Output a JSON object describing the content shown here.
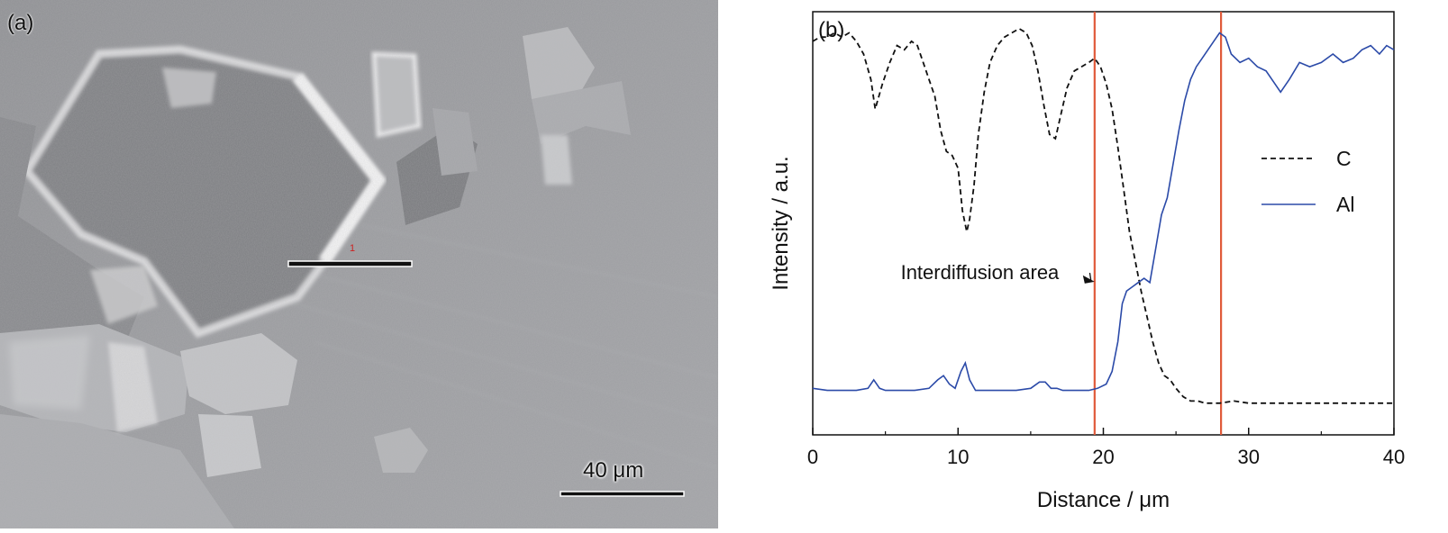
{
  "panel_a": {
    "label": "(a)",
    "scale_bar_label": "40 μm",
    "marker_label": "1"
  },
  "chart_data": {
    "type": "line",
    "panel_label": "(b)",
    "xlabel": "Distance / μm",
    "ylabel": "Intensity / a.u.",
    "xlim": [
      0,
      40
    ],
    "ylim": [
      0,
      100
    ],
    "xticks": [
      0,
      10,
      20,
      30,
      40
    ],
    "grid": false,
    "legend_position": "right",
    "vertical_lines": [
      19.4,
      28.1
    ],
    "vertical_line_color": "#e05a3a",
    "annotation": {
      "text": "Interdiffusion area",
      "x": 11.5,
      "y": 38.5,
      "arrow_to": [
        19.4,
        36.2
      ]
    },
    "series": [
      {
        "name": "C",
        "style": "dashed",
        "color": "#111111",
        "x": [
          0,
          0.5,
          1,
          1.5,
          2,
          2.5,
          3,
          3.5,
          4,
          4.3,
          4.8,
          5.3,
          5.8,
          6.3,
          6.8,
          7.2,
          7.6,
          8.0,
          8.4,
          8.8,
          9.2,
          9.6,
          10.0,
          10.3,
          10.6,
          10.8,
          11.1,
          11.4,
          11.8,
          12.2,
          12.7,
          13.2,
          13.7,
          14.2,
          14.7,
          15.1,
          15.5,
          15.9,
          16.3,
          16.7,
          17.1,
          17.5,
          18.0,
          18.5,
          19.0,
          19.4,
          19.8,
          20.2,
          20.6,
          21.0,
          21.4,
          21.8,
          22.2,
          22.6,
          23.0,
          23.4,
          23.8,
          24.2,
          24.6,
          25.0,
          25.5,
          26.0,
          26.5,
          27.0,
          27.5,
          28.0,
          29,
          30,
          31,
          32,
          33,
          34,
          35,
          36,
          37,
          38,
          39,
          40
        ],
        "y": [
          93,
          94,
          94,
          95,
          94,
          95,
          93,
          90,
          84,
          77,
          83,
          88,
          92,
          91,
          93,
          92,
          88,
          84,
          80,
          72,
          67,
          66,
          63,
          53,
          48,
          51,
          59,
          71,
          81,
          88,
          92,
          94,
          95,
          96,
          95,
          92,
          86,
          78,
          71,
          70,
          76,
          82,
          86,
          87,
          88,
          89,
          87,
          83,
          77,
          68,
          58,
          48,
          41,
          34,
          28,
          22,
          17,
          14,
          13,
          11,
          9,
          8,
          8,
          7.5,
          7.5,
          7.5,
          8,
          7.5,
          7.5,
          7.5,
          7.5,
          7.5,
          7.5,
          7.5,
          7.5,
          7.5,
          7.5,
          7.5
        ]
      },
      {
        "name": "Al",
        "style": "solid",
        "color": "#2b4aa8",
        "x": [
          0,
          1,
          2,
          3,
          3.8,
          4.2,
          4.6,
          5.0,
          6,
          7,
          8,
          8.6,
          9.0,
          9.4,
          9.8,
          10.2,
          10.5,
          10.8,
          11.2,
          12,
          13,
          14,
          15,
          15.6,
          16.0,
          16.4,
          16.8,
          17.2,
          18,
          19,
          19.6,
          20.2,
          20.6,
          21.0,
          21.3,
          21.6,
          22.0,
          22.4,
          22.8,
          23.2,
          23.6,
          24.0,
          24.4,
          24.8,
          25.2,
          25.6,
          26.0,
          26.4,
          26.8,
          27.2,
          27.6,
          28.0,
          28.4,
          28.8,
          29.4,
          30.0,
          30.6,
          31.2,
          31.8,
          32.2,
          32.8,
          33.5,
          34.2,
          35.0,
          35.8,
          36.5,
          37.2,
          37.8,
          38.4,
          39.0,
          39.5,
          40
        ],
        "y": [
          11,
          10.5,
          10.5,
          10.5,
          11,
          13,
          11,
          10.5,
          10.5,
          10.5,
          11,
          13,
          14,
          12,
          11,
          15,
          17,
          13,
          10.5,
          10.5,
          10.5,
          10.5,
          11,
          12.5,
          12.5,
          11,
          11,
          10.5,
          10.5,
          10.5,
          11,
          12,
          15,
          22,
          31,
          34,
          35,
          36,
          37,
          36,
          44,
          52,
          56,
          64,
          72,
          79,
          84,
          87,
          89,
          91,
          93,
          95,
          94,
          90,
          88,
          89,
          87,
          86,
          83,
          81,
          84,
          88,
          87,
          88,
          90,
          88,
          89,
          91,
          92,
          90,
          92,
          91
        ]
      }
    ]
  }
}
